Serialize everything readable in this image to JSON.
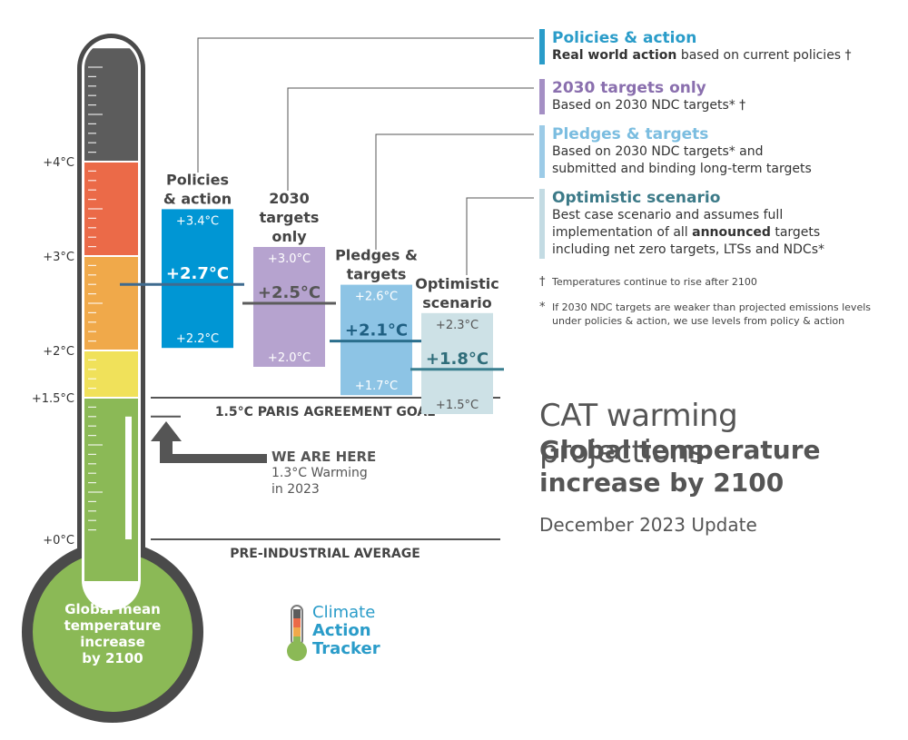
{
  "chart_data": {
    "type": "bar",
    "title": "CAT warming projections",
    "subtitle": "Global temperature increase by 2100",
    "update": "December 2023 Update",
    "thermometer": {
      "bulb_label": [
        "Global mean",
        "temperature",
        "increase",
        "by 2100"
      ],
      "ticks": [
        {
          "label": "+4°C",
          "value": 4
        },
        {
          "label": "+3°C",
          "value": 3
        },
        {
          "label": "+2°C",
          "value": 2
        },
        {
          "label": "+1.5°C",
          "value": 1.5
        },
        {
          "label": "+0°C",
          "value": 0
        }
      ],
      "bands": [
        {
          "from": 0,
          "to": 1.5,
          "color": "#8bb956"
        },
        {
          "from": 1.5,
          "to": 2.0,
          "color": "#f0e15a"
        },
        {
          "from": 2.0,
          "to": 3.0,
          "color": "#f0a94a"
        },
        {
          "from": 3.0,
          "to": 4.0,
          "color": "#eb6a48"
        },
        {
          "from": 4.0,
          "to": 5.2,
          "color": "#5c5c5c"
        }
      ],
      "current_level": 1.3
    },
    "scenarios": [
      {
        "name": [
          "Policies",
          "& action"
        ],
        "high": 3.4,
        "central": 2.7,
        "low": 2.2,
        "high_label": "+3.4°C",
        "central_label": "+2.7°C",
        "low_label": "+2.2°C",
        "color": "#0096d4",
        "line_color": "#3f6b8f",
        "text_color": "#ffffff"
      },
      {
        "name": [
          "2030",
          "targets",
          "only"
        ],
        "high": 3.0,
        "central": 2.5,
        "low": 2.0,
        "high_label": "+3.0°C",
        "central_label": "+2.5°C",
        "low_label": "+2.0°C",
        "color": "#b6a3cf",
        "line_color": "#5c5c5c",
        "text_color": "#ffffff"
      },
      {
        "name": [
          "Pledges &",
          "targets"
        ],
        "high": 2.6,
        "central": 2.1,
        "low": 1.7,
        "high_label": "+2.6°C",
        "central_label": "+2.1°C",
        "low_label": "+1.7°C",
        "color": "#8dc4e5",
        "line_color": "#2a6e8c",
        "text_color": "#ffffff"
      },
      {
        "name": [
          "Optimistic",
          "scenario"
        ],
        "high": 2.3,
        "central": 1.8,
        "low": 1.5,
        "high_label": "+2.3°C",
        "central_label": "+1.8°C",
        "low_label": "+1.5°C",
        "color": "#cde1e6",
        "line_color": "#3a7f8f",
        "text_color": "#555555"
      }
    ],
    "reference_lines": [
      {
        "label": "1.5°C PARIS AGREEMENT GOAL",
        "value": 1.5
      },
      {
        "label": "PRE-INDUSTRIAL AVERAGE",
        "value": 0
      }
    ],
    "we_are_here": {
      "title": "WE ARE HERE",
      "line1": "1.3°C Warming",
      "line2": "in 2023",
      "value": 1.3
    },
    "legend": [
      {
        "title": "Policies & action",
        "color": "#2a9cc9",
        "bar": "#2a9cc9",
        "lines": [
          [
            {
              "t": "Real world action",
              "b": true
            },
            {
              "t": " based on current policies †",
              "b": false
            }
          ]
        ]
      },
      {
        "title": "2030 targets only",
        "color": "#8a6fae",
        "bar": "#a48fc4",
        "lines": [
          [
            {
              "t": "Based on 2030 NDC targets* †",
              "b": false
            }
          ]
        ]
      },
      {
        "title": "Pledges & targets",
        "color": "#7bbde0",
        "bar": "#9ccbe7",
        "lines": [
          [
            {
              "t": "Based on 2030 NDC targets* and",
              "b": false
            }
          ],
          [
            {
              "t": "submitted and binding long-term targets",
              "b": false
            }
          ]
        ]
      },
      {
        "title": "Optimistic scenario",
        "color": "#3c7a88",
        "bar": "#c3dbe3",
        "lines": [
          [
            {
              "t": "Best case scenario and assumes full",
              "b": false
            }
          ],
          [
            {
              "t": "implementation of all ",
              "b": false
            },
            {
              "t": "announced",
              "b": true
            },
            {
              "t": " targets",
              "b": false
            }
          ],
          [
            {
              "t": "including net zero targets, LTSs and NDCs*",
              "b": false
            }
          ]
        ]
      }
    ],
    "notes": [
      {
        "sym": "†",
        "lines": [
          "Temperatures continue to rise after 2100"
        ]
      },
      {
        "sym": "*",
        "lines": [
          "If 2030 NDC targets are weaker than projected emissions levels",
          "under policies & action, we use levels from policy & action"
        ]
      }
    ],
    "logo": {
      "words": [
        "Climate",
        "Action",
        "Tracker"
      ]
    }
  }
}
